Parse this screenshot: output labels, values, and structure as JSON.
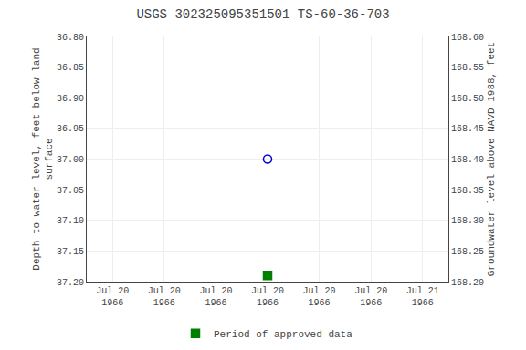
{
  "chart_data": {
    "type": "scatter",
    "title": "USGS 302325095351501 TS-60-36-703",
    "ylabel": "Depth to water level, feet below land\nsurface",
    "y2label": "Groundwater level above NAVD 1988, feet",
    "categories": [
      "Jul 20\n1966",
      "Jul 20\n1966",
      "Jul 20\n1966",
      "Jul 20\n1966",
      "Jul 20\n1966",
      "Jul 20\n1966",
      "Jul 21\n1966"
    ],
    "series": [
      {
        "values": [
          null,
          null,
          null,
          37.0,
          null,
          null,
          null
        ],
        "color": "#0000cc",
        "marker": "circle-open"
      },
      {
        "name": "Period of approved data",
        "values": [
          null,
          null,
          null,
          37.19,
          null,
          null,
          null
        ],
        "color": "#008000",
        "marker": "square"
      }
    ],
    "ylim": [
      37.2,
      36.8
    ],
    "yticks": [
      {
        "value": 36.8,
        "label": "36.80"
      },
      {
        "value": 36.85,
        "label": "36.85"
      },
      {
        "value": 36.9,
        "label": "36.90"
      },
      {
        "value": 36.95,
        "label": "36.95"
      },
      {
        "value": 37.0,
        "label": "37.00"
      },
      {
        "value": 37.05,
        "label": "37.05"
      },
      {
        "value": 37.1,
        "label": "37.10"
      },
      {
        "value": 37.15,
        "label": "37.15"
      },
      {
        "value": 37.2,
        "label": "37.20"
      }
    ],
    "y2lim": [
      168.2,
      168.6
    ],
    "y2ticks": [
      {
        "value": 168.6,
        "label": "168.60"
      },
      {
        "value": 168.55,
        "label": "168.55"
      },
      {
        "value": 168.5,
        "label": "168.50"
      },
      {
        "value": 168.45,
        "label": "168.45"
      },
      {
        "value": 168.4,
        "label": "168.40"
      },
      {
        "value": 168.35,
        "label": "168.35"
      },
      {
        "value": 168.3,
        "label": "168.30"
      },
      {
        "value": 168.25,
        "label": "168.25"
      },
      {
        "value": 168.2,
        "label": "168.20"
      }
    ],
    "grid": true,
    "legend": "bottom"
  }
}
